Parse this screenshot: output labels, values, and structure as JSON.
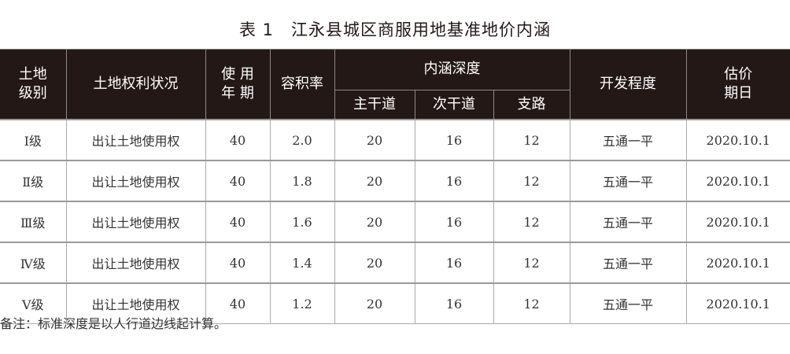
{
  "title": "表 1　江永县城区商服用地基准地价内涵",
  "headers": {
    "grade": "土地级别",
    "grade_l1": "土地",
    "grade_l2": "级别",
    "rights": "土地权利状况",
    "term_l1": "使 用",
    "term_l2": "年 期",
    "far": "容积率",
    "depth": "内涵深度",
    "main_road": "主干道",
    "secondary_road": "次干道",
    "branch_road": "支路",
    "development": "开发程度",
    "date_l1": "估价",
    "date_l2": "期日"
  },
  "rows": [
    {
      "grade": "Ⅰ级",
      "rights": "出让土地使用权",
      "term": "40",
      "far": "2.0",
      "main": "20",
      "secondary": "16",
      "branch": "12",
      "development": "五通一平",
      "date": "2020.10.1"
    },
    {
      "grade": "Ⅱ级",
      "rights": "出让土地使用权",
      "term": "40",
      "far": "1.8",
      "main": "20",
      "secondary": "16",
      "branch": "12",
      "development": "五通一平",
      "date": "2020.10.1"
    },
    {
      "grade": "Ⅲ级",
      "rights": "出让土地使用权",
      "term": "40",
      "far": "1.6",
      "main": "20",
      "secondary": "16",
      "branch": "12",
      "development": "五通一平",
      "date": "2020.10.1"
    },
    {
      "grade": "Ⅳ级",
      "rights": "出让土地使用权",
      "term": "40",
      "far": "1.4",
      "main": "20",
      "secondary": "16",
      "branch": "12",
      "development": "五通一平",
      "date": "2020.10.1"
    },
    {
      "grade": "Ⅴ级",
      "rights": "出让土地使用权",
      "term": "40",
      "far": "1.2",
      "main": "20",
      "secondary": "16",
      "branch": "12",
      "development": "五通一平",
      "date": "2020.10.1"
    }
  ],
  "note": "备注：标准深度是以人行道边线起计算。"
}
